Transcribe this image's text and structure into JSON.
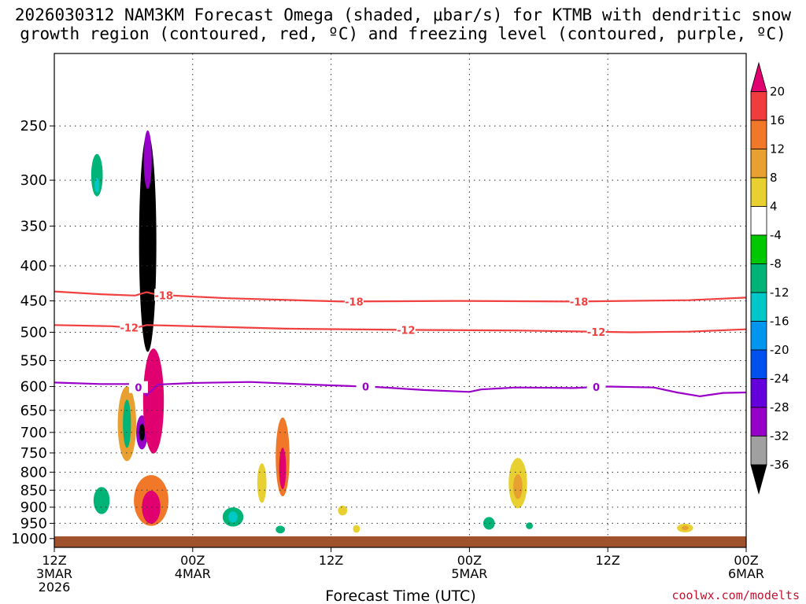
{
  "title_line1": "2026030312 NAM3KM Forecast Omega (shaded, μbar/s) for KTMB with dendritic snow",
  "title_line2": "growth region (contoured, red, ºC) and freezing level (contoured, purple, ºC)",
  "watermark": "coolwx.com/modelts",
  "chart_data": {
    "type": "heatmap",
    "xlabel": "Forecast Time (UTC)",
    "ylabel": "",
    "y_axis": {
      "unit": "hPa",
      "reversed": true,
      "ylim": [
        1030,
        196
      ],
      "ticks": [
        250,
        300,
        350,
        400,
        450,
        500,
        550,
        600,
        650,
        700,
        750,
        800,
        850,
        900,
        950,
        1000
      ]
    },
    "x_axis": {
      "unit": "forecast hour",
      "xlim": [
        0,
        60
      ],
      "ticks": [
        {
          "hour": 0,
          "lines": [
            "12Z",
            "3MAR",
            "2026"
          ]
        },
        {
          "hour": 12,
          "lines": [
            "00Z",
            "4MAR"
          ]
        },
        {
          "hour": 24,
          "lines": [
            "12Z"
          ]
        },
        {
          "hour": 36,
          "lines": [
            "00Z",
            "5MAR"
          ]
        },
        {
          "hour": 48,
          "lines": [
            "12Z"
          ]
        },
        {
          "hour": 60,
          "lines": [
            "00Z",
            "6MAR"
          ]
        }
      ]
    },
    "grid": true,
    "colorbar": {
      "ticks": [
        "20",
        "16",
        "12",
        "8",
        "4",
        "-4",
        "-8",
        "-12",
        "-16",
        "-20",
        "-24",
        "-28",
        "-32",
        "-36"
      ],
      "levels": [
        {
          "value": 20,
          "color": "#e0006f"
        },
        {
          "value": 16,
          "color": "#f03c3c"
        },
        {
          "value": 12,
          "color": "#f07828"
        },
        {
          "value": 8,
          "color": "#e8a030"
        },
        {
          "value": 4,
          "color": "#e8d030"
        },
        {
          "value": 0,
          "color": "#ffffff"
        },
        {
          "value": -4,
          "color": "#00c800"
        },
        {
          "value": -8,
          "color": "#00b478"
        },
        {
          "value": -12,
          "color": "#00c8c8"
        },
        {
          "value": -16,
          "color": "#0096f0"
        },
        {
          "value": -20,
          "color": "#0050f0"
        },
        {
          "value": -24,
          "color": "#6400dc"
        },
        {
          "value": -28,
          "color": "#9600c8"
        },
        {
          "value": -32,
          "color": "#a0a0a0"
        },
        {
          "value": -36,
          "color": "#000000"
        }
      ]
    },
    "contours": [
      {
        "name": "-18",
        "label": "-18",
        "color": "#f04040",
        "points": [
          [
            0,
            436
          ],
          [
            4,
            440
          ],
          [
            7,
            442
          ],
          [
            8,
            437
          ],
          [
            9,
            441
          ],
          [
            15,
            446
          ],
          [
            25,
            451
          ],
          [
            35,
            450
          ],
          [
            45,
            451
          ],
          [
            55,
            449
          ],
          [
            60,
            445
          ]
        ],
        "label_hours": [
          9.5,
          26,
          45.5
        ]
      },
      {
        "name": "-12",
        "label": "-12",
        "color": "#f04040",
        "points": [
          [
            0,
            488
          ],
          [
            5,
            490
          ],
          [
            7,
            493
          ],
          [
            8,
            488
          ],
          [
            10,
            489
          ],
          [
            20,
            494
          ],
          [
            30,
            496
          ],
          [
            40,
            497
          ],
          [
            50,
            500
          ],
          [
            55,
            499
          ],
          [
            60,
            495
          ]
        ],
        "label_hours": [
          6.5,
          30.5,
          47
        ]
      },
      {
        "name": "0",
        "label": "0",
        "color": "#9a00c8",
        "points": [
          [
            0,
            592
          ],
          [
            4,
            595
          ],
          [
            7,
            595
          ],
          [
            8,
            618
          ],
          [
            9,
            596
          ],
          [
            12,
            593
          ],
          [
            17,
            591
          ],
          [
            22,
            596
          ],
          [
            28,
            601
          ],
          [
            32,
            607
          ],
          [
            36,
            611
          ],
          [
            37,
            606
          ],
          [
            40,
            602
          ],
          [
            45,
            603
          ],
          [
            48,
            600
          ],
          [
            52,
            602
          ],
          [
            54,
            612
          ],
          [
            56,
            620
          ],
          [
            58,
            613
          ],
          [
            60,
            612
          ]
        ],
        "label_hours": [
          7.3,
          27,
          47
        ]
      }
    ],
    "omega_cells": [
      {
        "hour": 3.7,
        "p": 295,
        "dh": 0.5,
        "dp": 42,
        "level": -8
      },
      {
        "hour": 3.7,
        "p": 305,
        "dh": 0.2,
        "dp": 15,
        "level": -12
      },
      {
        "hour": 8.1,
        "p": 370,
        "dh": 0.75,
        "dp": 260,
        "level": -36
      },
      {
        "hour": 8.1,
        "p": 280,
        "dh": 0.35,
        "dp": 55,
        "level": -28
      },
      {
        "hour": 7.6,
        "p": 700,
        "dh": 0.5,
        "dp": 80,
        "level": -28
      },
      {
        "hour": 7.6,
        "p": 700,
        "dh": 0.25,
        "dp": 40,
        "level": -36
      },
      {
        "hour": 8.6,
        "p": 630,
        "dh": 0.9,
        "dp": 220,
        "level": 20
      },
      {
        "hour": 8.4,
        "p": 880,
        "dh": 1.5,
        "dp": 150,
        "level": 12
      },
      {
        "hour": 8.4,
        "p": 900,
        "dh": 0.8,
        "dp": 100,
        "level": 20
      },
      {
        "hour": 6.3,
        "p": 680,
        "dh": 0.8,
        "dp": 170,
        "level": 8
      },
      {
        "hour": 6.3,
        "p": 680,
        "dh": 0.35,
        "dp": 110,
        "level": -8
      },
      {
        "hour": 4.1,
        "p": 880,
        "dh": 0.7,
        "dp": 80,
        "level": -8
      },
      {
        "hour": 15.5,
        "p": 930,
        "dh": 0.9,
        "dp": 60,
        "level": -8
      },
      {
        "hour": 15.5,
        "p": 930,
        "dh": 0.4,
        "dp": 35,
        "level": -12
      },
      {
        "hour": 19.8,
        "p": 760,
        "dh": 0.6,
        "dp": 200,
        "level": 12
      },
      {
        "hour": 19.8,
        "p": 790,
        "dh": 0.3,
        "dp": 110,
        "level": 20
      },
      {
        "hour": 18.0,
        "p": 830,
        "dh": 0.4,
        "dp": 110,
        "level": 4
      },
      {
        "hour": 19.6,
        "p": 970,
        "dh": 0.4,
        "dp": 25,
        "level": -8
      },
      {
        "hour": 25.0,
        "p": 910,
        "dh": 0.4,
        "dp": 30,
        "level": 4
      },
      {
        "hour": 26.2,
        "p": 968,
        "dh": 0.3,
        "dp": 25,
        "level": 4
      },
      {
        "hour": 37.7,
        "p": 950,
        "dh": 0.5,
        "dp": 40,
        "level": -8
      },
      {
        "hour": 40.2,
        "p": 830,
        "dh": 0.8,
        "dp": 140,
        "level": 4
      },
      {
        "hour": 40.2,
        "p": 840,
        "dh": 0.4,
        "dp": 70,
        "level": 8
      },
      {
        "hour": 41.2,
        "p": 958,
        "dh": 0.3,
        "dp": 22,
        "level": -8
      },
      {
        "hour": 54.7,
        "p": 965,
        "dh": 0.7,
        "dp": 28,
        "level": 4
      },
      {
        "hour": 54.7,
        "p": 965,
        "dh": 0.3,
        "dp": 15,
        "level": 8
      }
    ]
  }
}
